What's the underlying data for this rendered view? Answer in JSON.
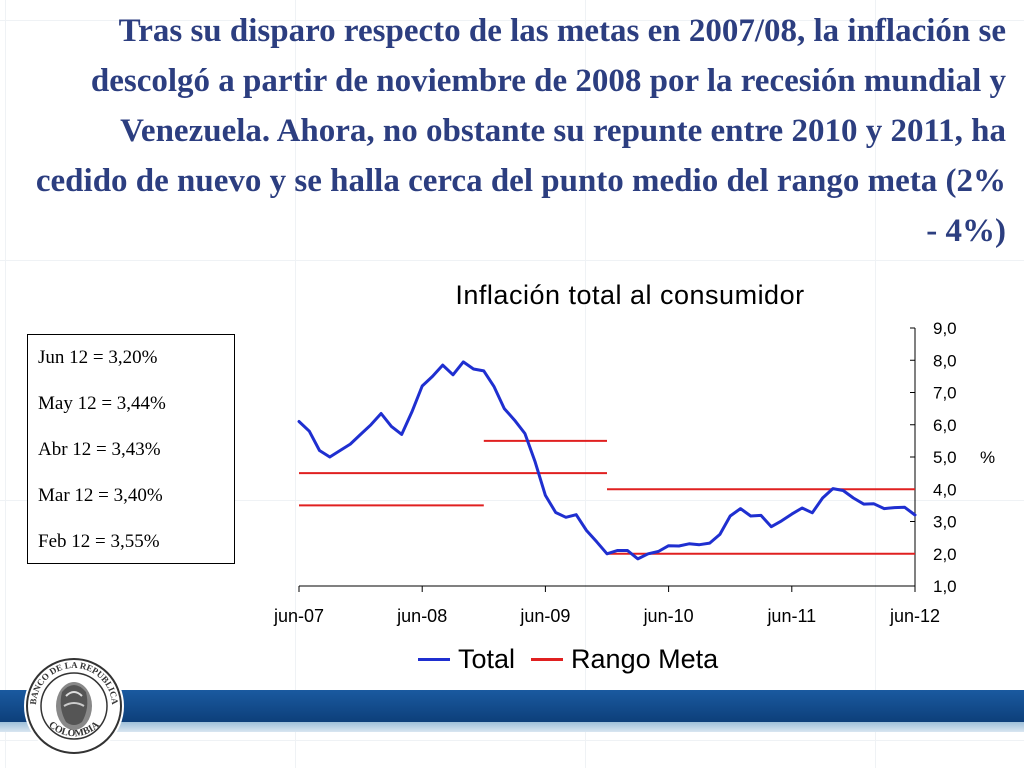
{
  "headline": "Tras su disparo respecto de las metas en 2007/08, la inflación se descolgó a partir de noviembre de 2008 por la recesión mundial y Venezuela.  Ahora, no obstante su repunte entre 2010 y 2011, ha cedido de nuevo y se halla cerca del punto medio del rango meta (2% - 4%)",
  "notes": [
    "Jun 12 = 3,20%",
    "May 12 = 3,44%",
    "Abr 12 = 3,43%",
    "Mar 12 = 3,40%",
    "Feb 12 = 3,55%"
  ],
  "seal": {
    "top_text": "BANCO DE LA REPUBLICA",
    "bottom_text": "COLOMBIA"
  },
  "colors": {
    "headline": "#2c3e80",
    "total": "#1f2fd0",
    "meta": "#e02020",
    "footer": "#1a5aa0"
  },
  "chart_data": {
    "type": "line",
    "title": "Inflación total al consumidor",
    "ylabel": "%",
    "ylim": [
      1,
      9
    ],
    "yticks": [
      1,
      2,
      3,
      4,
      5,
      6,
      7,
      8,
      9
    ],
    "ytick_labels": [
      "1,0",
      "2,0",
      "3,0",
      "4,0",
      "5,0",
      "6,0",
      "7,0",
      "8,0",
      "9,0"
    ],
    "xticks": [
      "2007-06",
      "2008-06",
      "2009-06",
      "2010-06",
      "2011-06",
      "2012-06"
    ],
    "xtick_labels": [
      "jun-07",
      "jun-08",
      "jun-09",
      "jun-10",
      "jun-11",
      "jun-12"
    ],
    "legend_position": "bottom",
    "series": [
      {
        "name": "Total",
        "x": [
          "2007-06",
          "2007-07",
          "2007-08",
          "2007-09",
          "2007-10",
          "2007-11",
          "2007-12",
          "2008-01",
          "2008-02",
          "2008-03",
          "2008-04",
          "2008-05",
          "2008-06",
          "2008-07",
          "2008-08",
          "2008-09",
          "2008-10",
          "2008-11",
          "2008-12",
          "2009-01",
          "2009-02",
          "2009-03",
          "2009-04",
          "2009-05",
          "2009-06",
          "2009-07",
          "2009-08",
          "2009-09",
          "2009-10",
          "2009-11",
          "2009-12",
          "2010-01",
          "2010-02",
          "2010-03",
          "2010-04",
          "2010-05",
          "2010-06",
          "2010-07",
          "2010-08",
          "2010-09",
          "2010-10",
          "2010-11",
          "2010-12",
          "2011-01",
          "2011-02",
          "2011-03",
          "2011-04",
          "2011-05",
          "2011-06",
          "2011-07",
          "2011-08",
          "2011-09",
          "2011-10",
          "2011-11",
          "2011-12",
          "2012-01",
          "2012-02",
          "2012-03",
          "2012-04",
          "2012-05",
          "2012-06"
        ],
        "values": [
          6.1,
          5.8,
          5.2,
          5.0,
          5.2,
          5.4,
          5.7,
          6.0,
          6.35,
          5.95,
          5.7,
          6.4,
          7.2,
          7.5,
          7.85,
          7.55,
          7.95,
          7.73,
          7.67,
          7.18,
          6.5,
          6.14,
          5.73,
          4.85,
          3.81,
          3.28,
          3.13,
          3.21,
          2.72,
          2.37,
          2.0,
          2.1,
          2.1,
          1.84,
          2.0,
          2.07,
          2.25,
          2.24,
          2.31,
          2.28,
          2.33,
          2.6,
          3.17,
          3.4,
          3.17,
          3.19,
          2.84,
          3.02,
          3.23,
          3.42,
          3.27,
          3.73,
          4.02,
          3.96,
          3.73,
          3.54,
          3.55,
          3.4,
          3.43,
          3.44,
          3.2
        ]
      },
      {
        "name": "Rango Meta",
        "segments": [
          {
            "from": "2007-06",
            "to": "2008-12",
            "value": 3.5
          },
          {
            "from": "2007-06",
            "to": "2009-12",
            "value": 4.5
          },
          {
            "from": "2008-12",
            "to": "2009-12",
            "value": 5.5
          },
          {
            "from": "2009-12",
            "to": "2012-06",
            "value": 2.0
          },
          {
            "from": "2009-12",
            "to": "2012-06",
            "value": 4.0
          }
        ]
      }
    ]
  }
}
